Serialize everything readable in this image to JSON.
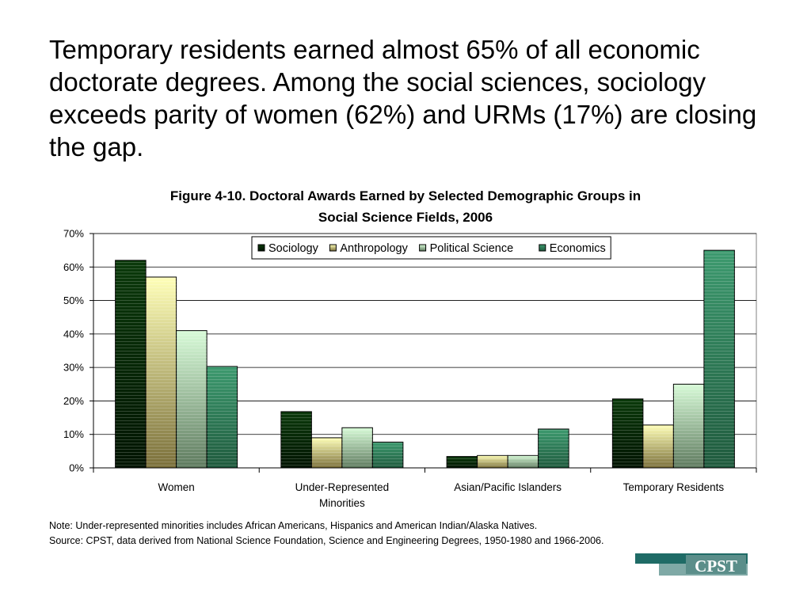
{
  "slide": {
    "headline": "Temporary residents earned almost 65% of all economic doctorate degrees. Among the social sciences, sociology exceeds parity of women (62%) and URMs (17%) are closing the gap.",
    "note": "Note: Under-represented minorities includes African Americans, Hispanics and American Indian/Alaska Natives.",
    "source": "Source: CPST, data derived from National Science Foundation, Science and Engineering Degrees, 1950-1980 and 1966-2006.",
    "logo_text": "CPST"
  },
  "chart_data": {
    "type": "bar",
    "title_line1": "Figure 4-10. Doctoral Awards Earned by Selected Demographic Groups in",
    "title_line2": "Social Science Fields, 2006",
    "categories": [
      "Women",
      "Under-Represented Minorities",
      "Asian/Pacific Islanders",
      "Temporary Residents"
    ],
    "category_lines": [
      [
        "Women"
      ],
      [
        "Under-Represented",
        "Minorities"
      ],
      [
        "Asian/Pacific Islanders"
      ],
      [
        "Temporary Residents"
      ]
    ],
    "series": [
      {
        "name": "Sociology",
        "values": [
          62,
          16.8,
          3.4,
          20.6
        ],
        "color_top": "#0b3a0b",
        "color_bottom": "#021402"
      },
      {
        "name": "Anthropology",
        "values": [
          57,
          9,
          3.7,
          12.8
        ],
        "color_top": "#ffffb8",
        "color_bottom": "#7a6f3a"
      },
      {
        "name": "Political Science",
        "values": [
          41,
          12,
          3.7,
          25
        ],
        "color_top": "#d8fbd8",
        "color_bottom": "#5e7a5e"
      },
      {
        "name": "Economics",
        "values": [
          30.3,
          7.7,
          11.6,
          65
        ],
        "color_top": "#3d9a6f",
        "color_bottom": "#1f5a3d"
      }
    ],
    "ylim": [
      0,
      70
    ],
    "yticks": [
      "0%",
      "10%",
      "20%",
      "30%",
      "40%",
      "50%",
      "60%",
      "70%"
    ],
    "legend_position": "top-center",
    "grid": "horizontal"
  }
}
